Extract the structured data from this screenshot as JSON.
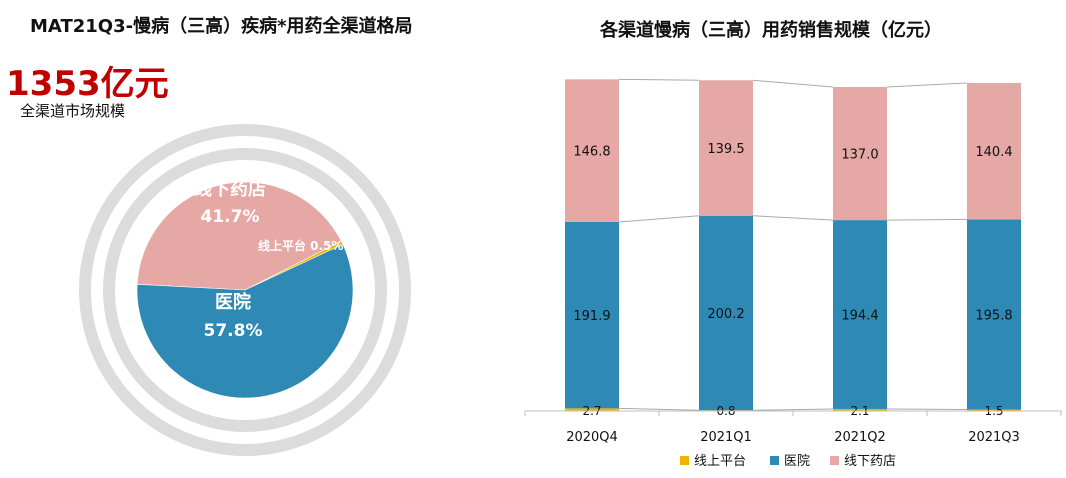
{
  "left": {
    "title": "MAT21Q3-慢病（三高）疾病*用药全渠道格局",
    "total_value": "1353亿元",
    "total_label": "全渠道市场规模"
  },
  "right": {
    "title": "各渠道慢病（三高）用药销售规模（亿元）"
  },
  "colors": {
    "online": "#f0b400",
    "hospital": "#2e8ab5",
    "offline": "#e6a8a4"
  },
  "chart_data": [
    {
      "type": "pie",
      "title": "MAT21Q3-慢病（三高）疾病*用药全渠道格局",
      "slices": [
        {
          "label": "线下药店",
          "value": 41.7,
          "display": "41.7%"
        },
        {
          "label": "线上平台",
          "value": 0.5,
          "display": "0.5%"
        },
        {
          "label": "医院",
          "value": 57.8,
          "display": "57.8%"
        }
      ]
    },
    {
      "type": "bar",
      "stacked": true,
      "title": "各渠道慢病（三高）用药销售规模（亿元）",
      "categories": [
        "2020Q4",
        "2021Q1",
        "2021Q2",
        "2021Q3"
      ],
      "series": [
        {
          "name": "线上平台",
          "values": [
            2.7,
            0.8,
            2.1,
            1.5
          ]
        },
        {
          "name": "医院",
          "values": [
            191.9,
            200.2,
            194.4,
            195.8
          ]
        },
        {
          "name": "线下药店",
          "values": [
            146.8,
            139.5,
            137.0,
            140.4
          ]
        }
      ],
      "legend_position": "bottom",
      "grid": false
    }
  ]
}
